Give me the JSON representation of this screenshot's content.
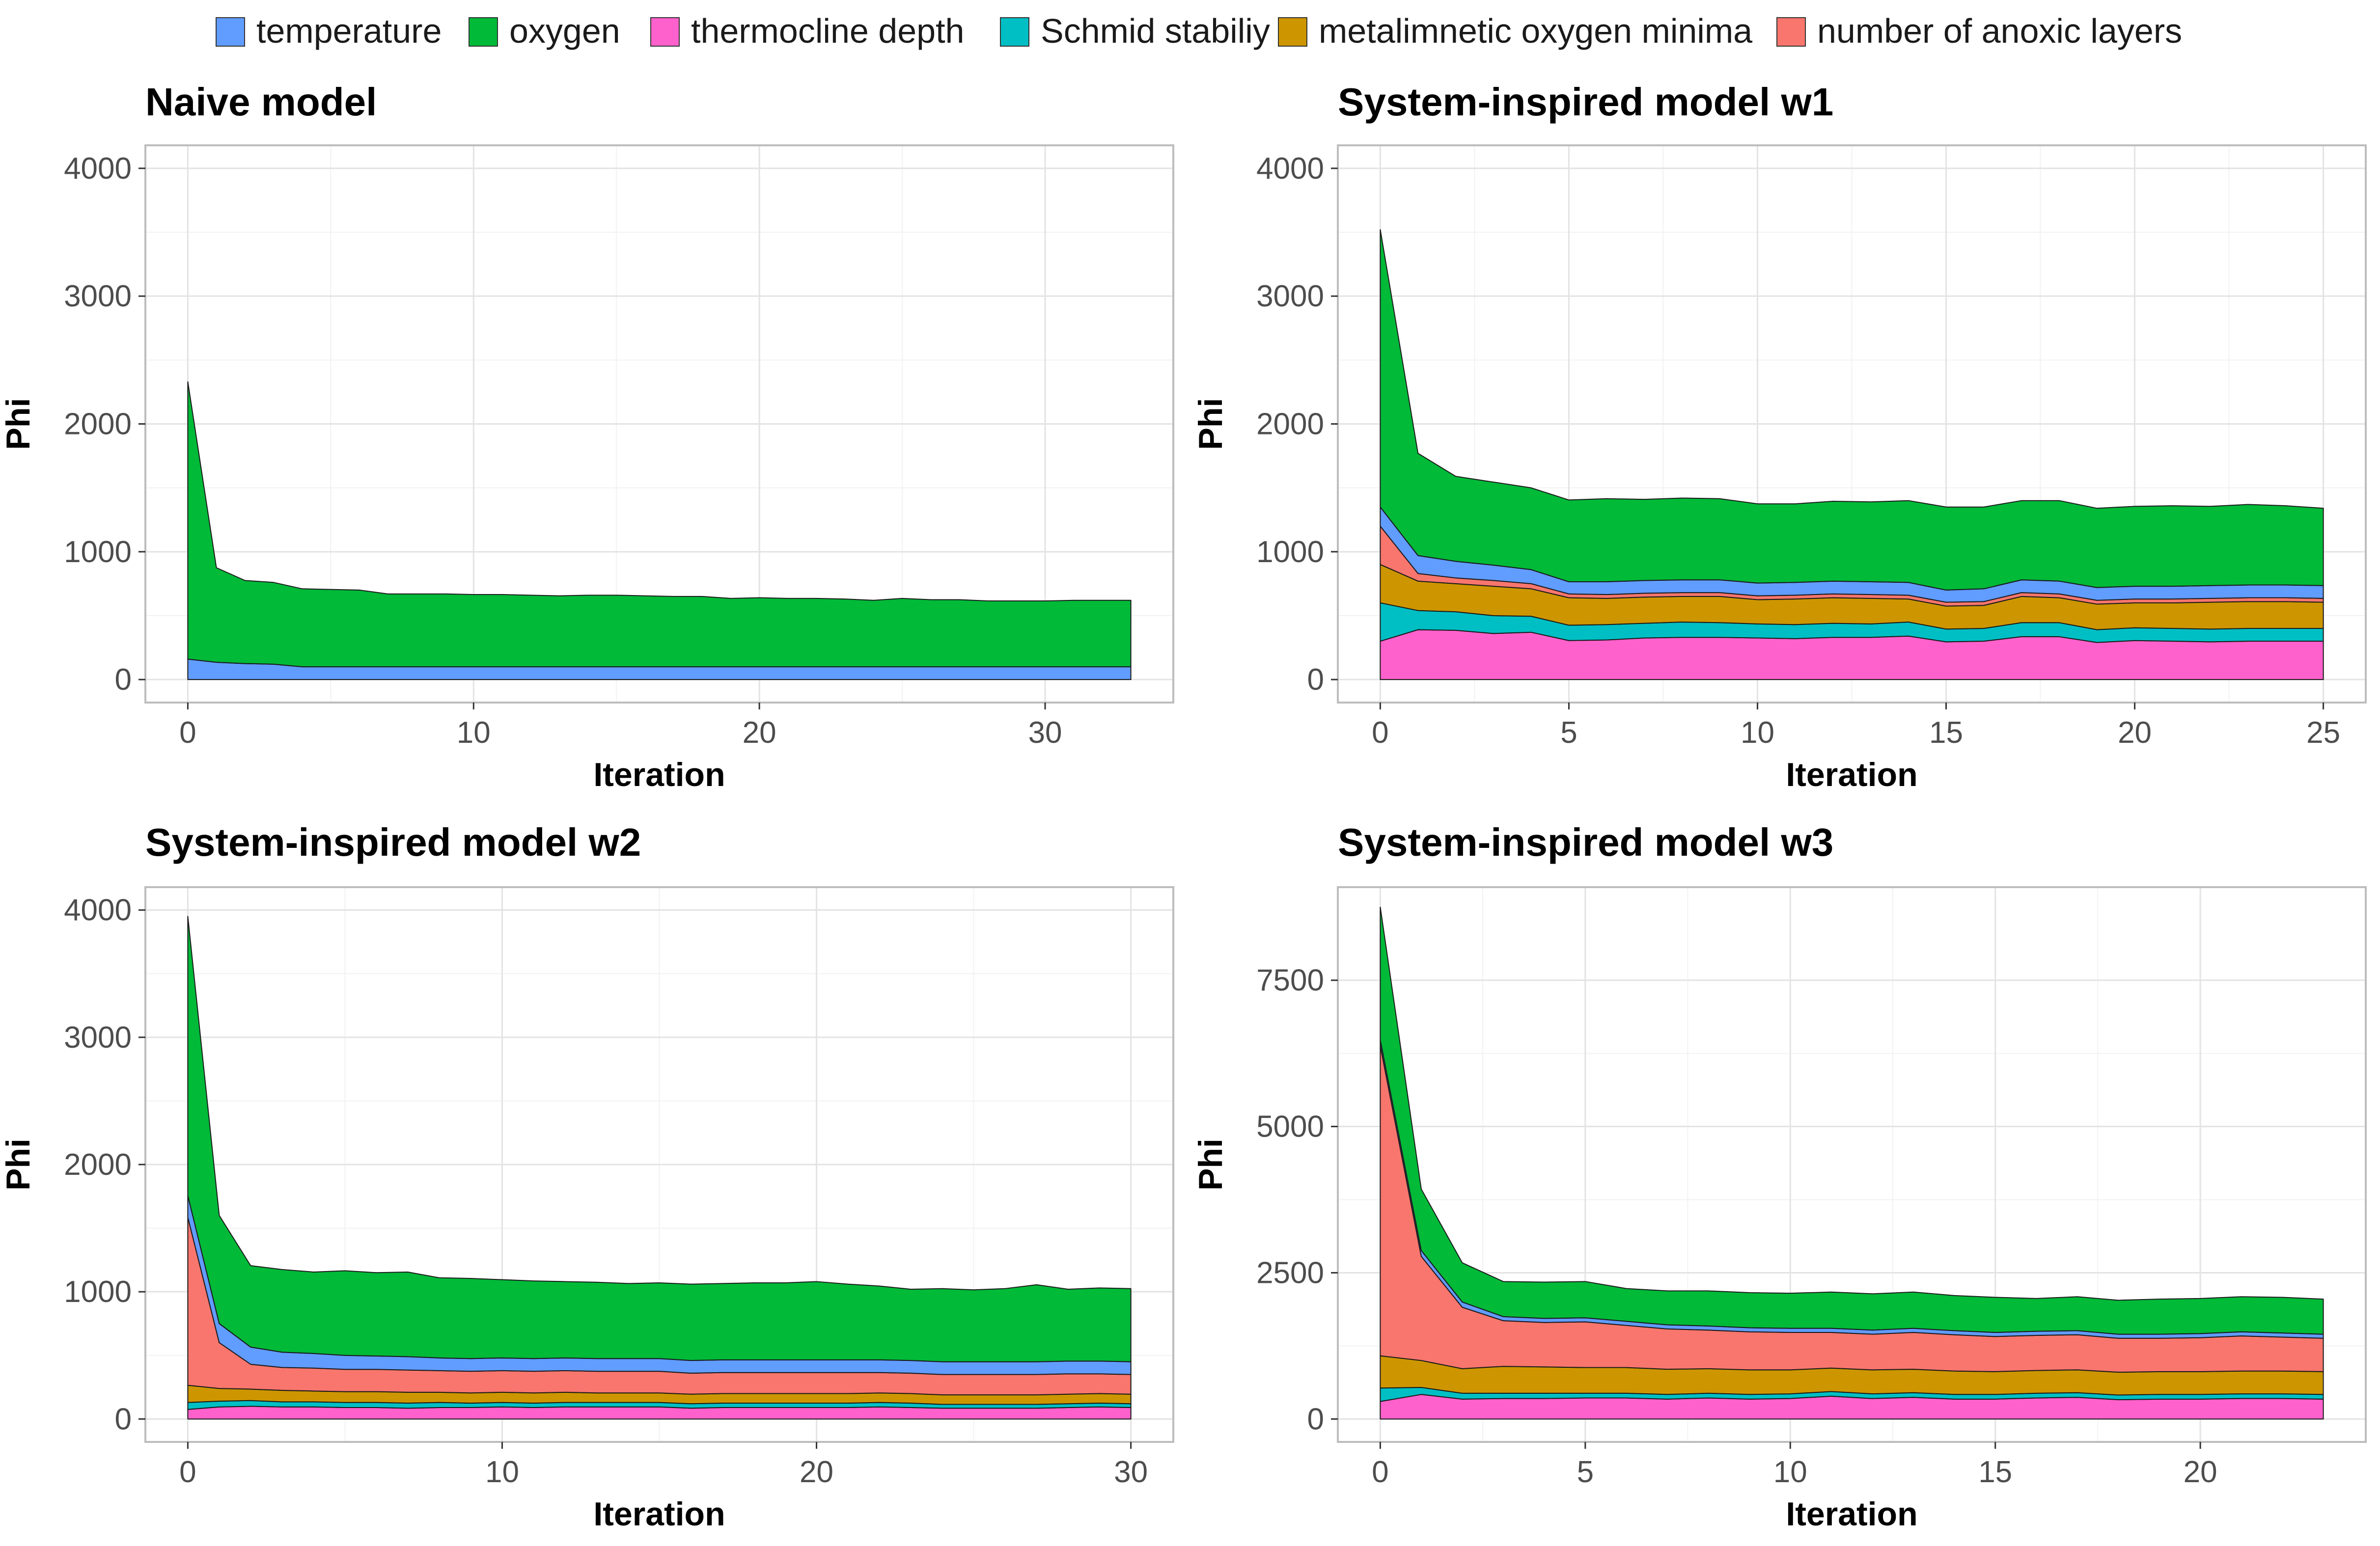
{
  "colors": {
    "temperature": "#619CFF",
    "oxygen": "#00BA38",
    "thermocline depth": "#FF61CC",
    "Schmid stabiliy": "#00BFC4",
    "metalimnetic oxygen minima": "#CD9600",
    "number of anoxic layers": "#F8766D",
    "panel_border": "#bdbdbd",
    "grid_major": "#e3e3e3",
    "grid_minor": "#f2f2f2",
    "area_outline": "#1a1a1a"
  },
  "legend": {
    "position": "top",
    "items": [
      "temperature",
      "oxygen",
      "thermocline depth",
      "Schmid stabiliy",
      "metalimnetic oxygen minima",
      "number of anoxic layers"
    ]
  },
  "chart_data": [
    {
      "type": "area",
      "stacked": true,
      "title": "Naive model",
      "xlabel": "Iteration",
      "ylabel": "Phi",
      "xlim": [
        0,
        33
      ],
      "ylim": [
        0,
        4000
      ],
      "xticks": [
        0,
        10,
        20,
        30
      ],
      "yticks": [
        0,
        1000,
        2000,
        3000,
        4000
      ],
      "grid": true,
      "x": [
        0,
        1,
        2,
        3,
        4,
        5,
        6,
        7,
        8,
        9,
        10,
        11,
        12,
        13,
        14,
        15,
        16,
        17,
        18,
        19,
        20,
        21,
        22,
        23,
        24,
        25,
        26,
        27,
        28,
        29,
        30,
        31,
        32,
        33
      ],
      "series": [
        {
          "name": "temperature",
          "values": [
            160,
            135,
            125,
            120,
            100,
            100,
            100,
            100,
            100,
            100,
            100,
            100,
            100,
            100,
            100,
            100,
            100,
            100,
            100,
            100,
            100,
            100,
            100,
            100,
            100,
            100,
            100,
            100,
            100,
            100,
            100,
            100,
            100,
            100
          ]
        },
        {
          "name": "oxygen",
          "values": [
            2170,
            740,
            650,
            640,
            610,
            605,
            600,
            570,
            570,
            570,
            565,
            565,
            560,
            555,
            560,
            560,
            555,
            550,
            550,
            535,
            540,
            535,
            535,
            530,
            520,
            535,
            525,
            525,
            515,
            515,
            515,
            520,
            520,
            520
          ]
        }
      ]
    },
    {
      "type": "area",
      "stacked": true,
      "title": "System-inspired model w1",
      "xlabel": "Iteration",
      "ylabel": "Phi",
      "xlim": [
        0,
        25
      ],
      "ylim": [
        0,
        4000
      ],
      "xticks": [
        0,
        5,
        10,
        15,
        20,
        25
      ],
      "yticks": [
        0,
        1000,
        2000,
        3000,
        4000
      ],
      "grid": true,
      "x": [
        0,
        1,
        2,
        3,
        4,
        5,
        6,
        7,
        8,
        9,
        10,
        11,
        12,
        13,
        14,
        15,
        16,
        17,
        18,
        19,
        20,
        21,
        22,
        23,
        24,
        25
      ],
      "series": [
        {
          "name": "thermocline depth",
          "values": [
            300,
            390,
            385,
            360,
            370,
            305,
            310,
            325,
            330,
            330,
            325,
            320,
            330,
            330,
            340,
            295,
            300,
            335,
            335,
            290,
            305,
            300,
            295,
            300,
            300,
            300
          ]
        },
        {
          "name": "Schmid stabiliy",
          "values": [
            300,
            150,
            145,
            140,
            125,
            120,
            120,
            115,
            120,
            115,
            110,
            110,
            110,
            105,
            110,
            100,
            100,
            110,
            110,
            100,
            100,
            100,
            100,
            100,
            100,
            100
          ]
        },
        {
          "name": "metalimnetic oxygen minima",
          "values": [
            300,
            230,
            220,
            230,
            215,
            215,
            205,
            205,
            200,
            205,
            190,
            200,
            200,
            200,
            180,
            180,
            180,
            205,
            195,
            200,
            195,
            200,
            210,
            210,
            210,
            205
          ]
        },
        {
          "name": "number of anoxic layers",
          "values": [
            300,
            60,
            45,
            45,
            40,
            30,
            30,
            30,
            30,
            30,
            30,
            30,
            30,
            30,
            30,
            30,
            30,
            30,
            30,
            30,
            30,
            30,
            30,
            30,
            30,
            30
          ]
        },
        {
          "name": "temperature",
          "values": [
            150,
            140,
            130,
            120,
            110,
            95,
            100,
            100,
            100,
            100,
            100,
            100,
            100,
            100,
            100,
            95,
            100,
            100,
            100,
            100,
            100,
            100,
            100,
            100,
            100,
            100
          ]
        },
        {
          "name": "oxygen",
          "values": [
            2170,
            800,
            665,
            650,
            640,
            640,
            650,
            635,
            640,
            635,
            620,
            615,
            625,
            625,
            640,
            650,
            640,
            620,
            630,
            620,
            625,
            630,
            620,
            630,
            620,
            605
          ]
        }
      ]
    },
    {
      "type": "area",
      "stacked": true,
      "title": "System-inspired model w2",
      "xlabel": "Iteration",
      "ylabel": "Phi",
      "xlim": [
        0,
        30
      ],
      "ylim": [
        0,
        4000
      ],
      "xticks": [
        0,
        10,
        20,
        30
      ],
      "yticks": [
        0,
        1000,
        2000,
        3000,
        4000
      ],
      "grid": true,
      "x": [
        0,
        1,
        2,
        3,
        4,
        5,
        6,
        7,
        8,
        9,
        10,
        11,
        12,
        13,
        14,
        15,
        16,
        17,
        18,
        19,
        20,
        21,
        22,
        23,
        24,
        25,
        26,
        27,
        28,
        29,
        30
      ],
      "series": [
        {
          "name": "thermocline depth",
          "values": [
            75,
            95,
            100,
            95,
            95,
            90,
            90,
            85,
            90,
            90,
            95,
            90,
            95,
            95,
            95,
            95,
            85,
            90,
            90,
            90,
            90,
            90,
            95,
            90,
            85,
            85,
            85,
            85,
            90,
            95,
            90
          ]
        },
        {
          "name": "Schmid stabiliy",
          "values": [
            55,
            45,
            45,
            40,
            40,
            40,
            40,
            40,
            40,
            35,
            35,
            35,
            35,
            35,
            35,
            35,
            35,
            35,
            35,
            35,
            35,
            35,
            35,
            35,
            30,
            30,
            30,
            30,
            30,
            30,
            30
          ]
        },
        {
          "name": "metalimnetic oxygen minima",
          "values": [
            135,
            100,
            90,
            90,
            85,
            85,
            85,
            85,
            80,
            80,
            80,
            80,
            80,
            75,
            75,
            75,
            75,
            75,
            75,
            75,
            75,
            75,
            75,
            75,
            75,
            75,
            75,
            75,
            75,
            75,
            75
          ]
        },
        {
          "name": "number of anoxic layers",
          "values": [
            1320,
            360,
            195,
            180,
            180,
            175,
            175,
            175,
            170,
            170,
            170,
            170,
            170,
            170,
            170,
            170,
            165,
            165,
            165,
            165,
            165,
            165,
            160,
            160,
            160,
            160,
            160,
            160,
            160,
            155,
            155
          ]
        },
        {
          "name": "temperature",
          "values": [
            170,
            150,
            135,
            120,
            115,
            110,
            105,
            105,
            100,
            100,
            100,
            100,
            100,
            100,
            100,
            100,
            100,
            100,
            100,
            100,
            100,
            100,
            100,
            100,
            100,
            100,
            100,
            100,
            100,
            100,
            100
          ]
        },
        {
          "name": "oxygen",
          "values": [
            2195,
            850,
            640,
            650,
            640,
            665,
            655,
            665,
            630,
            630,
            615,
            610,
            600,
            600,
            590,
            595,
            600,
            600,
            605,
            605,
            615,
            595,
            580,
            560,
            575,
            565,
            575,
            605,
            565,
            575,
            575
          ]
        }
      ]
    },
    {
      "type": "area",
      "stacked": true,
      "title": "System-inspired model w3",
      "xlabel": "Iteration",
      "ylabel": "Phi",
      "xlim": [
        0,
        23
      ],
      "ylim": [
        0,
        8700
      ],
      "xticks": [
        0,
        5,
        10,
        15,
        20
      ],
      "yticks": [
        0,
        2500,
        5000,
        7500
      ],
      "grid": true,
      "x": [
        0,
        1,
        2,
        3,
        4,
        5,
        6,
        7,
        8,
        9,
        10,
        11,
        12,
        13,
        14,
        15,
        16,
        17,
        18,
        19,
        20,
        21,
        22,
        23
      ],
      "series": [
        {
          "name": "thermocline depth",
          "values": [
            300,
            420,
            340,
            350,
            350,
            360,
            360,
            340,
            360,
            340,
            350,
            390,
            350,
            370,
            340,
            340,
            360,
            370,
            330,
            340,
            340,
            350,
            350,
            340
          ]
        },
        {
          "name": "Schmid stabiliy",
          "values": [
            230,
            120,
            100,
            90,
            90,
            80,
            80,
            80,
            80,
            80,
            80,
            80,
            80,
            80,
            80,
            80,
            80,
            80,
            80,
            80,
            80,
            80,
            80,
            80
          ]
        },
        {
          "name": "metalimnetic oxygen minima",
          "values": [
            550,
            460,
            420,
            460,
            450,
            440,
            440,
            430,
            420,
            420,
            410,
            400,
            410,
            400,
            400,
            390,
            390,
            390,
            390,
            390,
            390,
            390,
            390,
            390
          ]
        },
        {
          "name": "number of anoxic layers",
          "values": [
            5300,
            1780,
            1050,
            780,
            760,
            780,
            720,
            690,
            660,
            650,
            640,
            610,
            610,
            630,
            620,
            600,
            600,
            600,
            580,
            570,
            580,
            600,
            580,
            570
          ]
        },
        {
          "name": "temperature",
          "values": [
            100,
            100,
            90,
            70,
            70,
            70,
            70,
            70,
            70,
            70,
            70,
            70,
            70,
            70,
            70,
            70,
            70,
            70,
            70,
            70,
            70,
            70,
            70,
            70
          ]
        },
        {
          "name": "oxygen",
          "values": [
            2270,
            1050,
            670,
            600,
            620,
            620,
            560,
            580,
            600,
            600,
            600,
            620,
            620,
            620,
            600,
            600,
            560,
            580,
            580,
            600,
            600,
            600,
            610,
            600
          ]
        }
      ]
    }
  ]
}
